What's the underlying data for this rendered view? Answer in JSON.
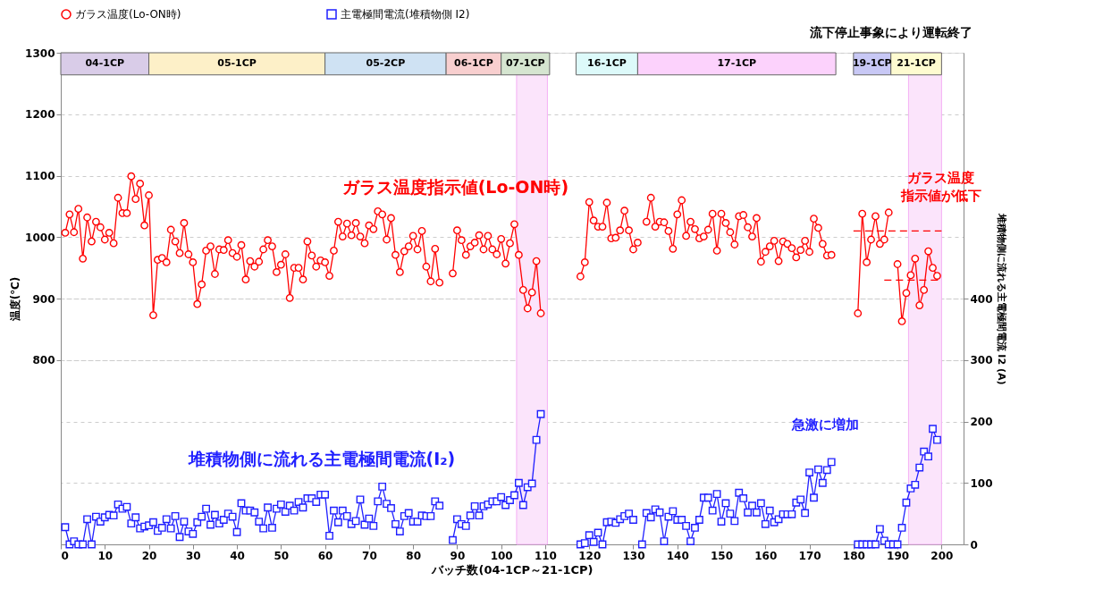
{
  "chart_data": {
    "type": "line",
    "xlabel": "バッチ数(04-1CP～21-1CP)",
    "ylabel": "温度(℃)",
    "y2label": "堆積物側に流れる主電極間電流 I2 (A)",
    "x": [
      1,
      2,
      3,
      4,
      5,
      6,
      7,
      8,
      9,
      10,
      11,
      12,
      13,
      14,
      15,
      16,
      17,
      18,
      19,
      20,
      21,
      22,
      23,
      24,
      25,
      26,
      27,
      28,
      29,
      30,
      31,
      32,
      33,
      34,
      35,
      36,
      37,
      38,
      39,
      40,
      41,
      42,
      43,
      44,
      45,
      46,
      47,
      48,
      49,
      50,
      51,
      52,
      53,
      54,
      55,
      56,
      57,
      58,
      59,
      60,
      61,
      62,
      63,
      64,
      65,
      66,
      67,
      68,
      69,
      70,
      71,
      72,
      73,
      74,
      75,
      76,
      77,
      78,
      79,
      80,
      81,
      82,
      83,
      84,
      85,
      86,
      87,
      88,
      89,
      90,
      91,
      92,
      93,
      94,
      95,
      96,
      97,
      98,
      99,
      100,
      101,
      102,
      103,
      104,
      105,
      106,
      107,
      108,
      109,
      110,
      111,
      112,
      113,
      114,
      115,
      116,
      117,
      118,
      119,
      120,
      121,
      122,
      123,
      124,
      125,
      126,
      127,
      128,
      129,
      130,
      131,
      132,
      133,
      134,
      135,
      136,
      137,
      138,
      139,
      140,
      141,
      142,
      143,
      144,
      145,
      146,
      147,
      148,
      149,
      150,
      151,
      152,
      153,
      154,
      155,
      156,
      157,
      158,
      159,
      160,
      161,
      162,
      163,
      164,
      165,
      166,
      167,
      168,
      169,
      170,
      171,
      172,
      173,
      174,
      175,
      176,
      177,
      178,
      179,
      180,
      181,
      182,
      183,
      184,
      185,
      186,
      187,
      188,
      189,
      190,
      191,
      192,
      193,
      194,
      195,
      196,
      197,
      198,
      199
    ],
    "series": [
      {
        "name": "ガラス温度(Lo-ON時)",
        "color": "#ff0000",
        "marker": "circle",
        "axis": "y",
        "values": [
          1007,
          1037,
          1008,
          1046,
          965,
          1032,
          993,
          1025,
          1016,
          996,
          1007,
          990,
          1064,
          1039,
          1039,
          1099,
          1062,
          1087,
          1019,
          1068,
          873,
          963,
          966,
          959,
          1012,
          993,
          974,
          1023,
          972,
          959,
          891,
          923,
          978,
          985,
          940,
          980,
          979,
          995,
          974,
          968,
          987,
          931,
          961,
          952,
          960,
          980,
          995,
          985,
          943,
          955,
          972,
          901,
          950,
          950,
          931,
          993,
          970,
          952,
          962,
          959,
          937,
          978,
          1025,
          1001,
          1022,
          1003,
          1023,
          1001,
          990,
          1019,
          1013,
          1042,
          1037,
          996,
          1031,
          971,
          943,
          977,
          985,
          1002,
          980,
          1010,
          952,
          928,
          981,
          926,
          null,
          null,
          941,
          1011,
          995,
          971,
          985,
          991,
          1003,
          980,
          1002,
          980,
          972,
          997,
          957,
          990,
          1021,
          971,
          914,
          884,
          910,
          961,
          876,
          null,
          null,
          null,
          null,
          null,
          null,
          null,
          null,
          936,
          959,
          1057,
          1027,
          1017,
          1017,
          1056,
          998,
          999,
          1011,
          1043,
          1011,
          980,
          991,
          null,
          1025,
          1064,
          1017,
          1025,
          1024,
          1010,
          981,
          1037,
          1060,
          1002,
          1025,
          1013,
          998,
          1001,
          1012,
          1038,
          978,
          1038,
          1023,
          1008,
          988,
          1034,
          1036,
          1016,
          1001,
          1031,
          960,
          976,
          985,
          994,
          961,
          993,
          989,
          982,
          967,
          979,
          994,
          976,
          1030,
          1015,
          989,
          970,
          971,
          null,
          null,
          null,
          null,
          null,
          876,
          1038,
          959,
          996,
          1034,
          989,
          996,
          1040,
          null,
          956,
          863,
          909,
          938,
          965,
          889,
          914,
          977,
          950,
          937
        ]
      },
      {
        "name": "主電極間電流(堆積物側 I2)",
        "color": "#1f1fff",
        "marker": "square",
        "axis": "y2",
        "values": [
          28,
          0,
          5,
          0,
          0,
          41,
          0,
          45,
          37,
          44,
          48,
          47,
          65,
          58,
          61,
          34,
          44,
          26,
          29,
          31,
          36,
          22,
          27,
          41,
          26,
          46,
          12,
          37,
          21,
          17,
          36,
          45,
          58,
          32,
          48,
          34,
          40,
          50,
          45,
          20,
          67,
          55,
          55,
          52,
          37,
          26,
          60,
          27,
          58,
          65,
          53,
          63,
          55,
          69,
          60,
          75,
          75,
          69,
          81,
          81,
          14,
          55,
          36,
          55,
          46,
          33,
          38,
          73,
          32,
          42,
          30,
          70,
          94,
          66,
          59,
          33,
          21,
          46,
          51,
          37,
          37,
          47,
          46,
          46,
          70,
          63,
          null,
          null,
          7,
          41,
          33,
          30,
          47,
          62,
          47,
          62,
          65,
          70,
          70,
          77,
          64,
          72,
          80,
          100,
          64,
          93,
          99,
          170,
          212,
          null,
          null,
          null,
          null,
          null,
          null,
          null,
          null,
          0,
          2,
          15,
          4,
          19,
          0,
          36,
          37,
          35,
          41,
          46,
          50,
          40,
          null,
          0,
          51,
          44,
          57,
          52,
          5,
          45,
          54,
          40,
          40,
          30,
          5,
          27,
          40,
          76,
          76,
          55,
          82,
          37,
          67,
          50,
          38,
          84,
          75,
          52,
          63,
          52,
          67,
          33,
          55,
          36,
          41,
          49,
          49,
          49,
          68,
          73,
          51,
          117,
          76,
          122,
          100,
          121,
          134,
          null,
          null,
          null,
          null,
          null,
          0,
          0,
          0,
          0,
          0,
          25,
          6,
          0,
          0,
          0,
          27,
          68,
          91,
          97,
          125,
          151,
          143,
          188,
          170
        ]
      },
      {
        "type": "line",
        "color": "#ff0000",
        "marker": "none",
        "line_style": "dashed",
        "axis": "y",
        "x": [
          180,
          200
        ],
        "values": [
          1010,
          1010
        ]
      },
      {
        "type": "line",
        "color": "#ff0000",
        "marker": "none",
        "line_style": "dashed",
        "axis": "y",
        "x": [
          187,
          200
        ],
        "values": [
          930,
          930
        ]
      }
    ],
    "xlim": [
      0,
      205
    ],
    "xticks": [
      0,
      10,
      20,
      30,
      40,
      50,
      60,
      70,
      80,
      90,
      100,
      110,
      120,
      130,
      140,
      150,
      160,
      170,
      180,
      190,
      200
    ],
    "ylim": [
      500,
      1300
    ],
    "yticks": [
      800,
      900,
      1000,
      1100,
      1200,
      1300
    ],
    "y2lim": [
      0,
      800
    ],
    "y2ticks": [
      0,
      100,
      200,
      300,
      400
    ],
    "bands": [
      {
        "axis": "x",
        "from": 0,
        "to": 20,
        "label": "04-1CP",
        "color": "#d9cce8"
      },
      {
        "axis": "x",
        "from": 20,
        "to": 60,
        "label": "05-1CP",
        "color": "#fdf0c8"
      },
      {
        "axis": "x",
        "from": 60,
        "to": 87.5,
        "label": "05-2CP",
        "color": "#cfe2f3"
      },
      {
        "axis": "x",
        "from": 87.5,
        "to": 100,
        "label": "06-1CP",
        "color": "#f8cfcf"
      },
      {
        "axis": "x",
        "from": 100,
        "to": 111,
        "label": "07-1CP",
        "color": "#d5e5d0"
      },
      {
        "axis": "x",
        "from": 117,
        "to": 131,
        "label": "16-1CP",
        "color": "#ddfafa"
      },
      {
        "axis": "x",
        "from": 131,
        "to": 176,
        "label": "17-1CP",
        "color": "#fcd2fc"
      },
      {
        "axis": "x",
        "from": 180,
        "to": 188.5,
        "label": "19-1CP",
        "color": "#c8c8f5"
      },
      {
        "axis": "x",
        "from": 188.5,
        "to": 200,
        "label": "21-1CP",
        "color": "#fefbd0"
      },
      {
        "axis": "x",
        "from": 103.5,
        "to": 110.5,
        "color": "#fbe4fb"
      },
      {
        "axis": "x",
        "from": 192.5,
        "to": 200,
        "color": "#fbe4fb"
      }
    ],
    "annotations": [
      {
        "text": "流下停止事象により運転終了",
        "x": 188.5,
        "y": 1300
      },
      "ガラス温度指示値(Lo-ON時)",
      "堆積物側に流れる主電極間電流(I₂)",
      "急激に増加",
      "ガラス温度",
      "指示値が低下"
    ],
    "grid": "y",
    "legend": "top"
  }
}
